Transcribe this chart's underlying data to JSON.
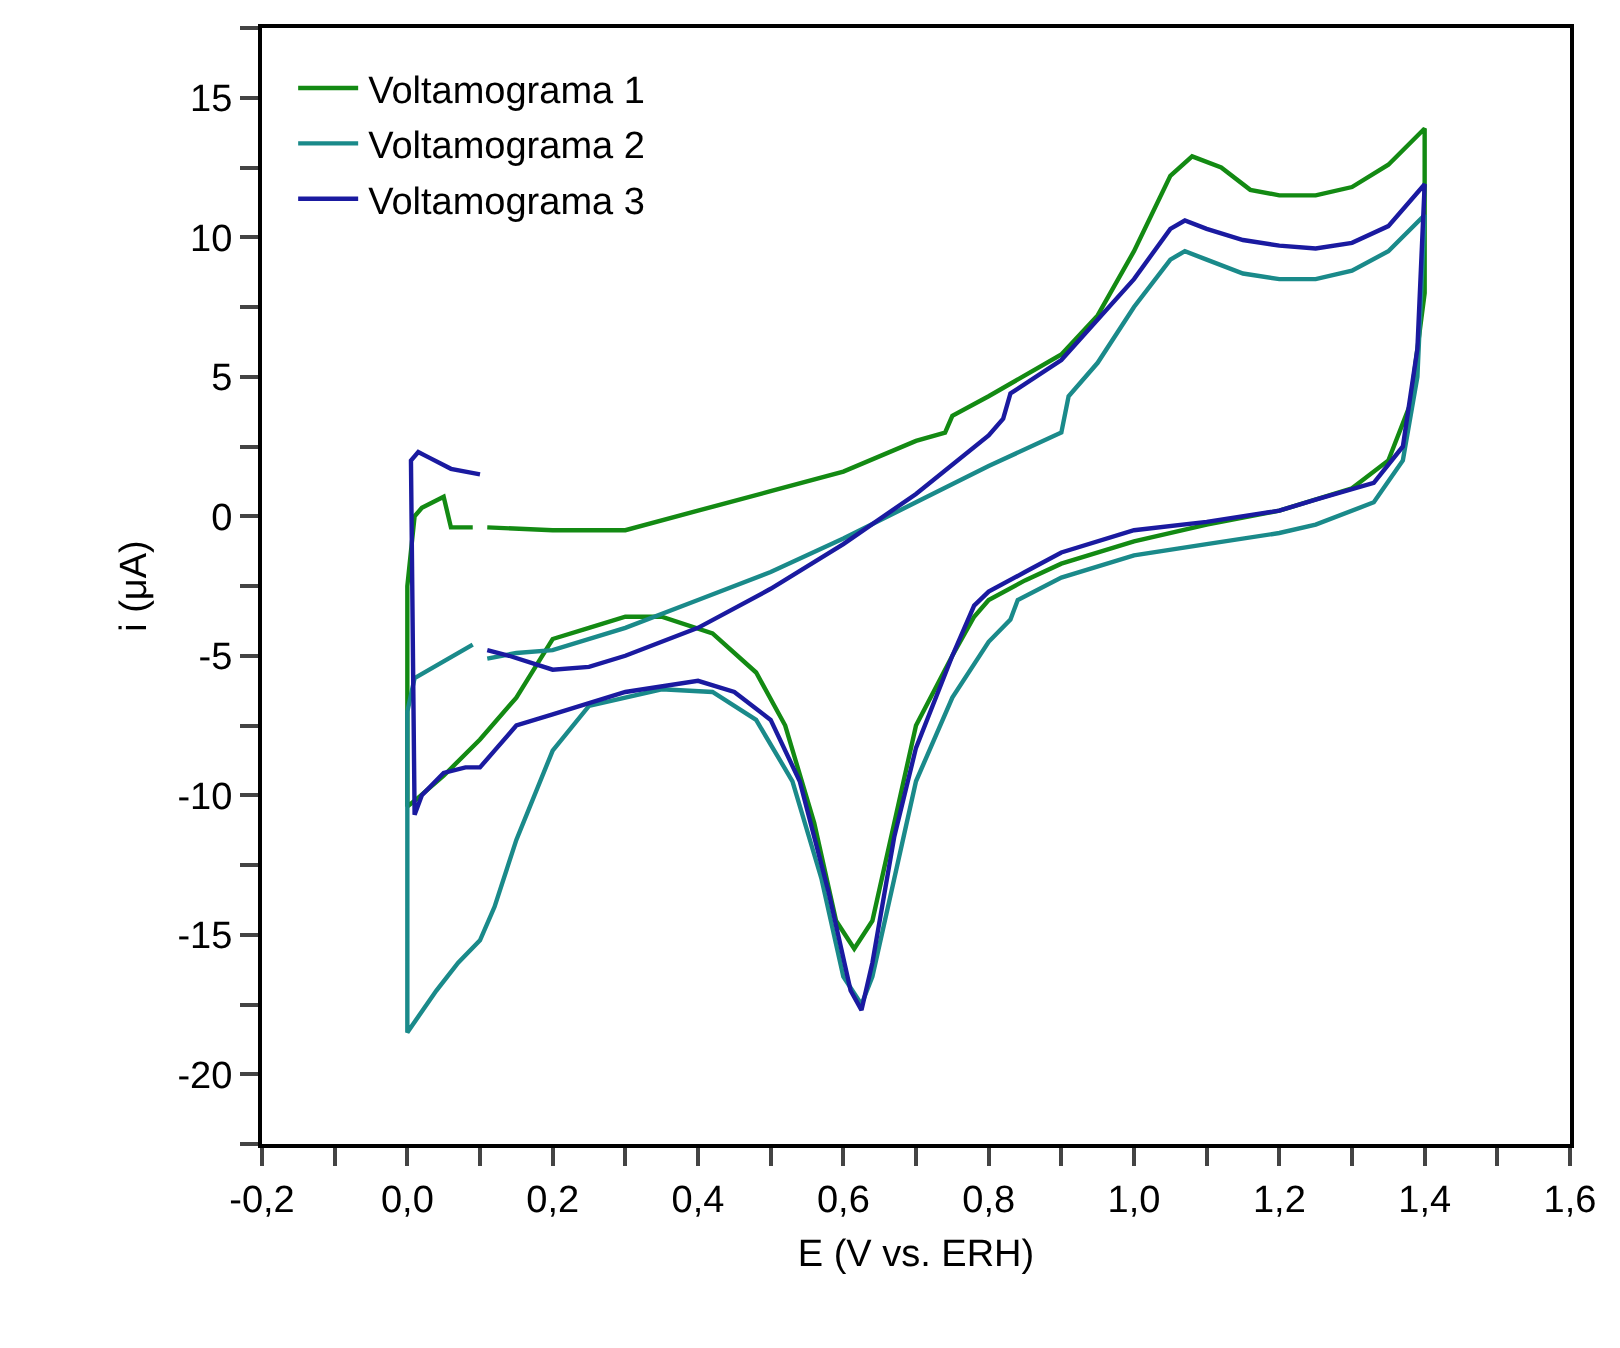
{
  "chart_data": {
    "type": "line",
    "xlabel": "E (V vs. ERH)",
    "ylabel": "i (μA)",
    "xlim": [
      -0.2,
      1.6
    ],
    "ylim": [
      -22.5,
      17.5
    ],
    "xticks": [
      {
        "value": -0.2,
        "label": "-0,2"
      },
      {
        "value": -0.1,
        "label": null
      },
      {
        "value": 0.0,
        "label": "0,0"
      },
      {
        "value": 0.1,
        "label": null
      },
      {
        "value": 0.2,
        "label": "0,2"
      },
      {
        "value": 0.3,
        "label": null
      },
      {
        "value": 0.4,
        "label": "0,4"
      },
      {
        "value": 0.5,
        "label": null
      },
      {
        "value": 0.6,
        "label": "0,6"
      },
      {
        "value": 0.7,
        "label": null
      },
      {
        "value": 0.8,
        "label": "0,8"
      },
      {
        "value": 0.9,
        "label": null
      },
      {
        "value": 1.0,
        "label": "1,0"
      },
      {
        "value": 1.1,
        "label": null
      },
      {
        "value": 1.2,
        "label": "1,2"
      },
      {
        "value": 1.3,
        "label": null
      },
      {
        "value": 1.4,
        "label": "1,4"
      },
      {
        "value": 1.5,
        "label": null
      },
      {
        "value": 1.6,
        "label": "1,6"
      }
    ],
    "yticks": [
      {
        "value": -22.5,
        "label": null
      },
      -20,
      {
        "value": -17.5,
        "label": null
      },
      -15,
      {
        "value": -12.5,
        "label": null
      },
      -10,
      {
        "value": -7.5,
        "label": null
      },
      -5,
      {
        "value": -2.5,
        "label": null
      },
      0,
      {
        "value": 2.5,
        "label": null
      },
      5,
      {
        "value": 7.5,
        "label": null
      },
      10,
      {
        "value": 12.5,
        "label": null
      },
      15,
      {
        "value": 17.5,
        "label": null
      }
    ],
    "legend": "top left",
    "marker": "none",
    "line_style": "solid",
    "series": [
      {
        "name": "Voltamograma 1",
        "color": "#138a13",
        "x": [
          0.11,
          0.2,
          0.3,
          0.4,
          0.5,
          0.6,
          0.7,
          0.74,
          0.75,
          0.8,
          0.9,
          0.95,
          1.0,
          1.05,
          1.08,
          1.12,
          1.16,
          1.2,
          1.25,
          1.3,
          1.35,
          1.4,
          1.4,
          1.38,
          1.35,
          1.3,
          1.2,
          1.1,
          1.0,
          0.9,
          0.85,
          0.8,
          0.78,
          0.75,
          0.7,
          0.67,
          0.64,
          0.615,
          0.59,
          0.56,
          0.52,
          0.48,
          0.42,
          0.35,
          0.3,
          0.25,
          0.2,
          0.15,
          0.1,
          0.05,
          0.01,
          0.0,
          0.0,
          0.01,
          0.02,
          0.05,
          0.06,
          0.09
        ],
        "values": [
          -0.4,
          -0.5,
          -0.5,
          0.2,
          0.9,
          1.6,
          2.7,
          3.0,
          3.6,
          4.3,
          5.8,
          7.2,
          9.5,
          12.2,
          12.9,
          12.5,
          11.7,
          11.5,
          11.5,
          11.8,
          12.6,
          13.9,
          8.0,
          4.0,
          2.0,
          1.0,
          0.2,
          -0.3,
          -0.9,
          -1.7,
          -2.3,
          -3.0,
          -3.6,
          -5.0,
          -7.5,
          -11.0,
          -14.5,
          -15.5,
          -14.5,
          -11.0,
          -7.5,
          -5.6,
          -4.2,
          -3.6,
          -3.6,
          -4.0,
          -4.4,
          -6.5,
          -8.0,
          -9.3,
          -10.2,
          -10.4,
          -2.5,
          0.0,
          0.3,
          0.7,
          -0.4,
          -0.4
        ]
      },
      {
        "name": "Voltamograma 2",
        "color": "#1a8a8a",
        "x": [
          0.11,
          0.15,
          0.2,
          0.3,
          0.4,
          0.5,
          0.6,
          0.7,
          0.8,
          0.9,
          0.91,
          0.95,
          1.0,
          1.05,
          1.07,
          1.1,
          1.15,
          1.2,
          1.25,
          1.3,
          1.35,
          1.4,
          1.39,
          1.37,
          1.33,
          1.25,
          1.2,
          1.1,
          1.0,
          0.9,
          0.84,
          0.83,
          0.8,
          0.75,
          0.7,
          0.67,
          0.64,
          0.625,
          0.6,
          0.57,
          0.53,
          0.48,
          0.42,
          0.35,
          0.25,
          0.2,
          0.15,
          0.12,
          0.1,
          0.07,
          0.04,
          0.0,
          0.0,
          0.01,
          0.05,
          0.09
        ],
        "values": [
          -5.1,
          -4.9,
          -4.8,
          -4.0,
          -3.0,
          -2.0,
          -0.8,
          0.5,
          1.8,
          3.0,
          4.3,
          5.5,
          7.5,
          9.2,
          9.5,
          9.2,
          8.7,
          8.5,
          8.5,
          8.8,
          9.5,
          10.8,
          5.0,
          2.0,
          0.5,
          -0.3,
          -0.6,
          -1.0,
          -1.4,
          -2.2,
          -3.0,
          -3.7,
          -4.5,
          -6.5,
          -9.5,
          -13.0,
          -16.5,
          -17.5,
          -16.5,
          -13.0,
          -9.5,
          -7.3,
          -6.3,
          -6.2,
          -6.8,
          -8.4,
          -11.6,
          -14.0,
          -15.2,
          -16.0,
          -17.0,
          -18.5,
          -7.0,
          -5.8,
          -5.2,
          -4.6
        ]
      },
      {
        "name": "Voltamograma 3",
        "color": "#1a1aa0",
        "x": [
          0.11,
          0.14,
          0.2,
          0.25,
          0.3,
          0.4,
          0.5,
          0.6,
          0.7,
          0.8,
          0.82,
          0.83,
          0.9,
          1.0,
          1.05,
          1.07,
          1.1,
          1.15,
          1.2,
          1.25,
          1.3,
          1.35,
          1.4,
          1.39,
          1.37,
          1.33,
          1.25,
          1.2,
          1.1,
          1.0,
          0.9,
          0.85,
          0.8,
          0.78,
          0.75,
          0.7,
          0.67,
          0.64,
          0.625,
          0.61,
          0.58,
          0.54,
          0.5,
          0.45,
          0.4,
          0.3,
          0.2,
          0.15,
          0.12,
          0.1,
          0.08,
          0.05,
          0.02,
          0.01,
          0.005,
          0.015,
          0.03,
          0.06,
          0.1
        ],
        "values": [
          -4.8,
          -5.0,
          -5.5,
          -5.4,
          -5.0,
          -4.0,
          -2.6,
          -1.0,
          0.8,
          2.9,
          3.5,
          4.4,
          5.6,
          8.5,
          10.3,
          10.6,
          10.3,
          9.9,
          9.7,
          9.6,
          9.8,
          10.4,
          11.9,
          6.0,
          2.5,
          1.2,
          0.6,
          0.2,
          -0.2,
          -0.5,
          -1.3,
          -2.0,
          -2.7,
          -3.2,
          -5.0,
          -8.3,
          -11.5,
          -16.0,
          -17.7,
          -17.0,
          -13.5,
          -9.5,
          -7.3,
          -6.3,
          -5.9,
          -6.3,
          -7.1,
          -7.5,
          -8.4,
          -9.0,
          -9.0,
          -9.2,
          -10.0,
          -10.7,
          2.0,
          2.3,
          2.1,
          1.7,
          1.5
        ]
      }
    ]
  }
}
